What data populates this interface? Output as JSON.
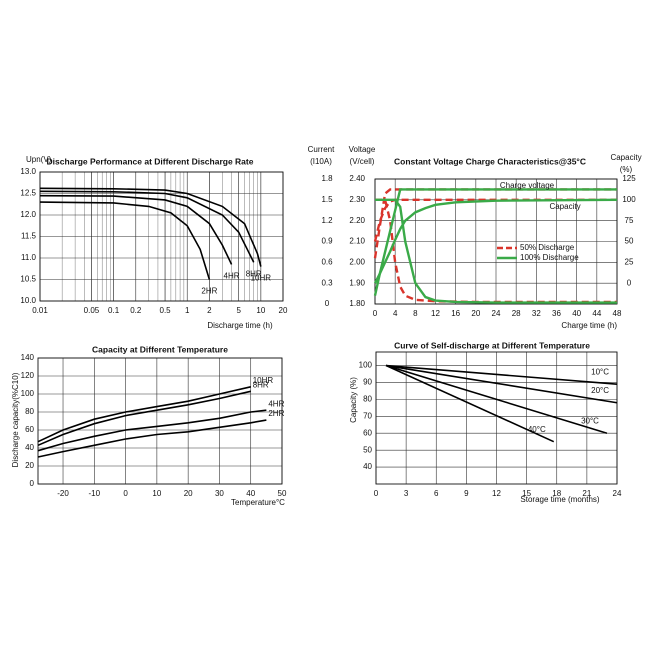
{
  "chart_data": [
    {
      "type": "line",
      "title": "Discharge Performance at Different Discharge Rate",
      "ylabel": "Upn(V)",
      "xlabel": "Discharge time (h)",
      "xscale": "log",
      "xlim": [
        0.01,
        20
      ],
      "xticks": [
        0.01,
        0.05,
        0.1,
        0.2,
        0.5,
        1,
        2,
        5,
        10,
        20
      ],
      "ylim": [
        10,
        13
      ],
      "yticks": [
        {
          "value": 10,
          "label": "10.0"
        },
        {
          "value": 10.5,
          "label": "10.5"
        },
        {
          "value": 11,
          "label": "11.0"
        },
        {
          "value": 11.5,
          "label": "11.5"
        },
        {
          "value": 12,
          "label": "12.0"
        },
        {
          "value": 12.5,
          "label": "12.5"
        },
        {
          "value": 13,
          "label": "13.0"
        }
      ],
      "grid": true,
      "series": [
        {
          "name": "2HR",
          "color": "#000000",
          "x": [
            0.01,
            0.1,
            0.3,
            0.6,
            1,
            1.5,
            2
          ],
          "values": [
            12.3,
            12.28,
            12.2,
            12.05,
            11.75,
            11.2,
            10.5
          ]
        },
        {
          "name": "4HR",
          "color": "#000000",
          "x": [
            0.01,
            0.1,
            0.5,
            1,
            2,
            3,
            4
          ],
          "values": [
            12.45,
            12.44,
            12.35,
            12.2,
            11.8,
            11.3,
            10.85
          ]
        },
        {
          "name": "8HR",
          "color": "#000000",
          "x": [
            0.01,
            0.1,
            0.5,
            1,
            3,
            5,
            7,
            8
          ],
          "values": [
            12.55,
            12.54,
            12.5,
            12.4,
            12.0,
            11.6,
            11.1,
            10.9
          ]
        },
        {
          "name": "10HR",
          "color": "#000000",
          "x": [
            0.01,
            0.1,
            0.5,
            1,
            3,
            6,
            9,
            10
          ],
          "values": [
            12.62,
            12.61,
            12.58,
            12.5,
            12.2,
            11.8,
            11.1,
            10.8
          ]
        }
      ]
    },
    {
      "type": "charge",
      "title": "Constant Voltage Charge Characteristics@35°C",
      "ylabel": [
        "Voltage",
        "(V/cell)"
      ],
      "y2label": [
        "Capacity",
        "(%)"
      ],
      "y3label": [
        "Current",
        "(I10A)"
      ],
      "xlabel": "Charge time (h)",
      "xlim": [
        0,
        48
      ],
      "xticks": [
        0,
        4,
        8,
        12,
        16,
        20,
        24,
        28,
        32,
        36,
        40,
        44,
        48
      ],
      "ylim": [
        1.8,
        2.4
      ],
      "yticks": [
        {
          "value": 1.8,
          "label": "1.80"
        },
        {
          "value": 1.9,
          "label": "1.90"
        },
        {
          "value": 2.0,
          "label": "2.00"
        },
        {
          "value": 2.1,
          "label": "2.10"
        },
        {
          "value": 2.2,
          "label": "2.20"
        },
        {
          "value": 2.3,
          "label": "2.30"
        },
        {
          "value": 2.4,
          "label": "2.40"
        }
      ],
      "y2lim": [
        -25,
        125
      ],
      "y2ticks": [
        0,
        25,
        50,
        75,
        100,
        125
      ],
      "y3lim": [
        0,
        1.8
      ],
      "y3ticks": [
        0,
        0.3,
        0.6,
        0.9,
        1.2,
        1.5,
        1.8
      ],
      "grid": true,
      "annotations": [
        "Charge voltage",
        "Capacity"
      ],
      "series": [
        {
          "name": "50% Discharge",
          "color": "#d9342b",
          "dashed": true,
          "x": [
            0,
            1,
            2,
            3,
            4,
            5,
            6,
            8,
            12,
            20,
            48
          ],
          "voltage": [
            2.02,
            2.18,
            2.33,
            2.35,
            2.35,
            2.35,
            2.35,
            2.35,
            2.35,
            2.35,
            2.35
          ],
          "current": [
            1.5,
            1.5,
            1.5,
            1.2,
            0.6,
            0.25,
            0.12,
            0.06,
            0.04,
            0.03,
            0.03
          ],
          "capacity": [
            50,
            75,
            90,
            98,
            100,
            100,
            100,
            100,
            100,
            100,
            100
          ]
        },
        {
          "name": "100% Discharge",
          "color": "#3aaa48",
          "dashed": false,
          "x": [
            0,
            1,
            2,
            3,
            4,
            5,
            6,
            8,
            10,
            12,
            16,
            24,
            48
          ],
          "voltage": [
            1.84,
            1.95,
            2.05,
            2.15,
            2.25,
            2.35,
            2.35,
            2.35,
            2.35,
            2.35,
            2.35,
            2.35,
            2.35
          ],
          "current": [
            1.5,
            1.5,
            1.5,
            1.5,
            1.5,
            1.4,
            0.9,
            0.3,
            0.1,
            0.05,
            0.03,
            0.02,
            0.02
          ],
          "capacity": [
            0,
            12,
            25,
            38,
            52,
            65,
            75,
            85,
            90,
            94,
            97,
            99,
            100
          ]
        }
      ]
    },
    {
      "type": "line",
      "title": "Capacity at Different Temperature",
      "ylabel": "Discharge capacity(%C10)",
      "xlabel": "Temperature°C",
      "xlim": [
        -28,
        50
      ],
      "xticks": [
        -20,
        -10,
        0,
        10,
        20,
        30,
        40,
        50
      ],
      "ylim": [
        0,
        140
      ],
      "yticks": [
        0,
        20,
        40,
        60,
        80,
        100,
        120,
        140
      ],
      "grid": true,
      "series": [
        {
          "name": "10HR",
          "color": "#000000",
          "x": [
            -28,
            -20,
            -10,
            0,
            10,
            20,
            30,
            40
          ],
          "values": [
            47,
            60,
            72,
            80,
            86,
            92,
            100,
            108
          ]
        },
        {
          "name": "8HR",
          "color": "#000000",
          "x": [
            -28,
            -20,
            -10,
            0,
            10,
            20,
            30,
            40
          ],
          "values": [
            43,
            55,
            67,
            76,
            82,
            88,
            95,
            103
          ]
        },
        {
          "name": "4HR",
          "color": "#000000",
          "x": [
            -28,
            -20,
            -10,
            0,
            10,
            20,
            30,
            40,
            45
          ],
          "values": [
            37,
            45,
            53,
            60,
            64,
            68,
            73,
            80,
            82
          ]
        },
        {
          "name": "2HR",
          "color": "#000000",
          "x": [
            -28,
            -20,
            -10,
            0,
            10,
            20,
            30,
            40,
            45
          ],
          "values": [
            30,
            36,
            43,
            50,
            55,
            58,
            63,
            68,
            71
          ]
        }
      ]
    },
    {
      "type": "line",
      "title": "Curve of Self-discharge at Different Temperature",
      "ylabel": "Capacity (%)",
      "xlabel": "Storage time (months)",
      "xlim": [
        0,
        24
      ],
      "xticks": [
        0,
        3,
        6,
        9,
        12,
        15,
        18,
        21,
        24
      ],
      "ylim": [
        30,
        108
      ],
      "yticks": [
        40,
        50,
        60,
        70,
        80,
        90,
        100
      ],
      "grid": true,
      "series": [
        {
          "name": "10°C",
          "color": "#000000",
          "x": [
            1,
            24
          ],
          "values": [
            100,
            89
          ]
        },
        {
          "name": "20°C",
          "color": "#000000",
          "x": [
            1,
            24
          ],
          "values": [
            100,
            78
          ]
        },
        {
          "name": "30°C",
          "color": "#000000",
          "x": [
            1,
            23
          ],
          "values": [
            100,
            60
          ]
        },
        {
          "name": "40°C",
          "color": "#000000",
          "x": [
            1,
            17.7
          ],
          "values": [
            100,
            55
          ]
        }
      ]
    }
  ]
}
